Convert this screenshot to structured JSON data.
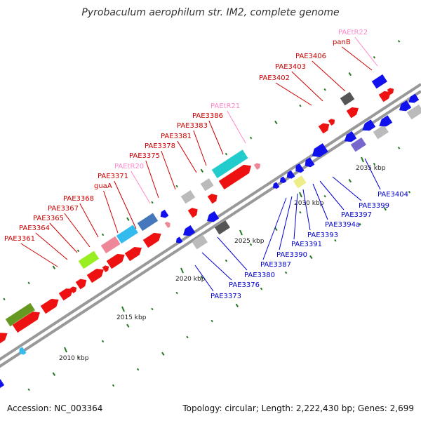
{
  "title": "Pyrobaculum aerophilum str. IM2, complete genome",
  "footer": {
    "accession": "Accession: NC_003364",
    "topology": "Topology: circular; Length: 2,222,430 bp; Genes: 2,699"
  },
  "colors": {
    "forward_label": "#cc0000",
    "reverse_label": "#0000cc",
    "trna_label": "#ff88cc",
    "kbp_tick": "#227722",
    "backbone": "#999999",
    "gene_red": "#ee1111",
    "gene_blue": "#1111ee",
    "gene_gray": "#bbbbbb",
    "gene_darkgray": "#555555",
    "gene_cyan": "#22cccc",
    "gene_steelblue": "#4477bb",
    "gene_lightblue": "#33bbee",
    "gene_pink": "#ee8899",
    "gene_lime": "#99ee22",
    "gene_olive": "#669922",
    "gene_purple": "#7766cc",
    "gene_yellow": "#eeee88"
  },
  "kbp_labels": [
    "2010 kbp",
    "2015 kbp",
    "2020 kbp",
    "2025 kbp",
    "2030 kbp",
    "2035 kbp"
  ],
  "forward_labels": [
    "PAE3361",
    "PAE3364",
    "PAE3365",
    "PAE3367",
    "PAE3368",
    "guaA",
    "PAE3371",
    "PAEtR20",
    "PAE3375",
    "PAE3378",
    "PAE3381",
    "PAE3383",
    "PAE3386",
    "PAEtR21",
    "PAE3402",
    "PAE3403",
    "PAE3406",
    "panB",
    "PAEtR22"
  ],
  "reverse_labels": [
    "PAE3373",
    "PAE3376",
    "PAE3380",
    "PAE3387",
    "PAE3390",
    "PAE3391",
    "PAE3393",
    "PAE3394a",
    "PAE3397",
    "PAE3399",
    "PAE3404"
  ]
}
